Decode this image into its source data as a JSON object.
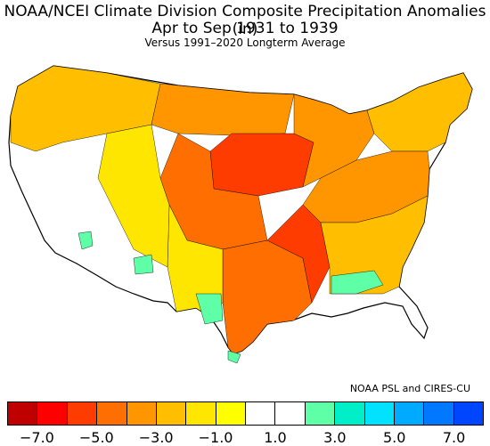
{
  "title": {
    "line1": "NOAA/NCEI Climate Division Composite Precipitation Anomalies (in)",
    "line2": "Apr to Sep 1931 to 1939",
    "line3": "Versus 1991–2020 Longterm Average"
  },
  "credit": "NOAA PSL and CIRES-CU",
  "legend": {
    "colors": [
      "#c00000",
      "#ff0000",
      "#ff3c00",
      "#ff6e00",
      "#ff9600",
      "#ffbe00",
      "#ffe600",
      "#ffff00",
      "#ffffff",
      "#ffffff",
      "#5fffa8",
      "#00eec8",
      "#00e2ff",
      "#00aaff",
      "#0078ff",
      "#0046ff"
    ],
    "tick_labels": [
      "−7.0",
      "−5.0",
      "−3.0",
      "−1.0",
      "1.0",
      "3.0",
      "5.0",
      "7.0"
    ]
  },
  "map": {
    "background": "#ffffff",
    "outline_color": "#000000"
  }
}
